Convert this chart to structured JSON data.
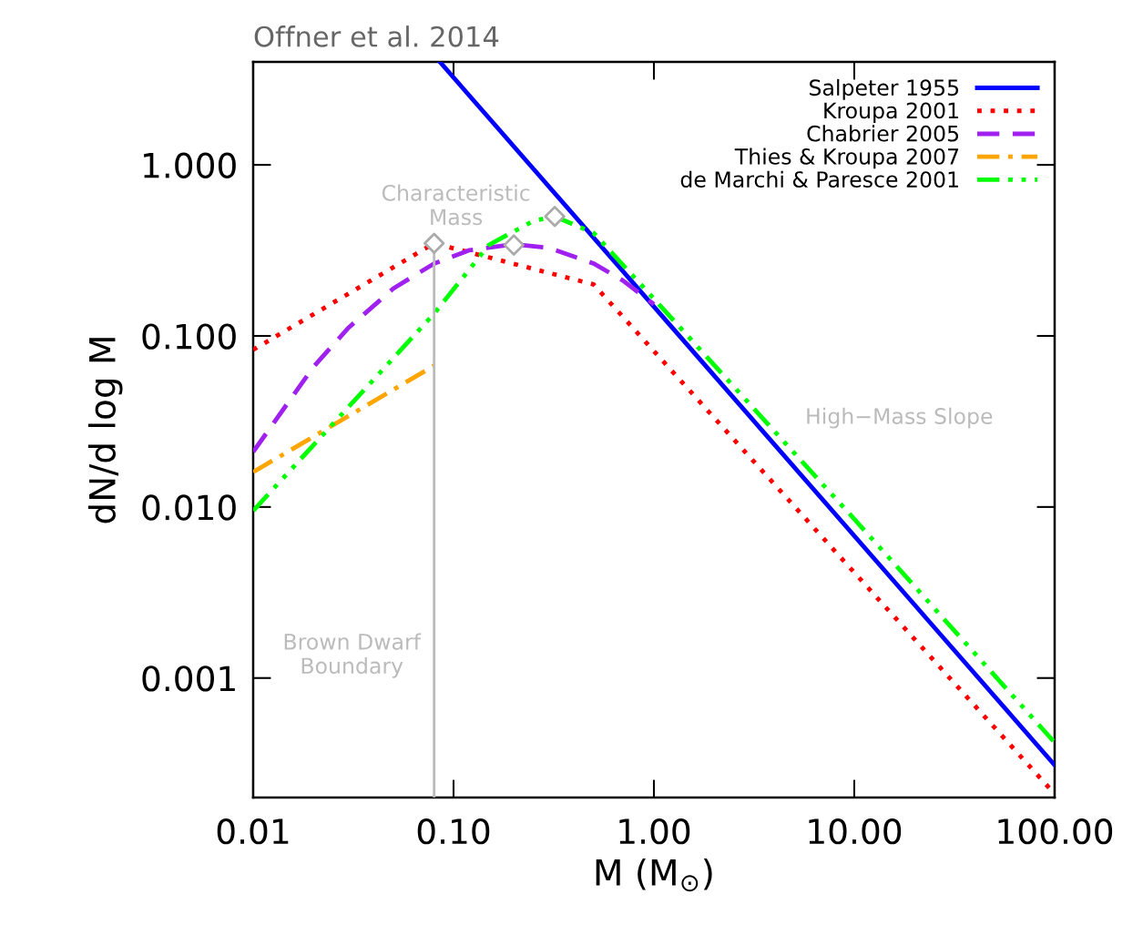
{
  "chart_data": {
    "type": "line",
    "title": "Offner et al. 2014",
    "xlabel": "M (M$_{⊙}$)",
    "ylabel": "dN/d log M",
    "log": "xy",
    "xlim": [
      0.01,
      100
    ],
    "ylim": [
      0.0002,
      4
    ],
    "xticks": [
      {
        "value": 0.01,
        "label": "0.01"
      },
      {
        "value": 0.1,
        "label": "0.10"
      },
      {
        "value": 1,
        "label": "1.00"
      },
      {
        "value": 10,
        "label": "10.00"
      },
      {
        "value": 100,
        "label": "100.00"
      }
    ],
    "yticks": [
      {
        "value": 0.001,
        "label": "0.001"
      },
      {
        "value": 0.01,
        "label": "0.010"
      },
      {
        "value": 0.1,
        "label": "0.100"
      },
      {
        "value": 1,
        "label": "1.000"
      }
    ],
    "grid": false,
    "legend": "top right",
    "series": [
      {
        "name": "Salpeter 1955",
        "color": "#0000ff",
        "line_style": "solid",
        "x": [
          0.0855,
          100
        ],
        "values": [
          4,
          0.00031
        ]
      },
      {
        "name": "Kroupa 2001",
        "color": "#ff0000",
        "line_style": "dotted",
        "x": [
          0.01,
          0.08,
          0.5,
          100
        ],
        "values": [
          0.083,
          0.348,
          0.2,
          0.00021
        ]
      },
      {
        "name": "Chabrier 2005",
        "color": "#a020f0",
        "line_style": "dashed",
        "x": [
          0.01,
          0.02,
          0.03,
          0.05,
          0.08,
          0.12,
          0.2,
          0.3,
          0.5,
          0.7,
          1.0
        ],
        "values": [
          0.021,
          0.066,
          0.112,
          0.189,
          0.265,
          0.317,
          0.344,
          0.327,
          0.265,
          0.211,
          0.153
        ]
      },
      {
        "name": "Thies & Kroupa 2007",
        "color": "#ffa500",
        "line_style": "dashdot",
        "x": [
          0.01,
          0.08
        ],
        "values": [
          0.016,
          0.067
        ]
      },
      {
        "name": "de Marchi & Paresce 2001",
        "color": "#00ff00",
        "line_style": "dashdotdot",
        "x": [
          0.01,
          0.08,
          0.15,
          0.25,
          0.32,
          0.5,
          1.0,
          10,
          100
        ],
        "values": [
          0.0095,
          0.135,
          0.34,
          0.47,
          0.5,
          0.4,
          0.165,
          0.0085,
          0.00042
        ]
      },
      {
        "color": "#bbbbbb",
        "line_style": "solid",
        "x": [
          0.08,
          0.08
        ],
        "values": [
          0.0002,
          0.348
        ]
      },
      {
        "type": "scatter",
        "marker": "diamond",
        "color": "#aaaaaa",
        "x": [
          0.08,
          0.2,
          0.32
        ],
        "values": [
          0.348,
          0.34,
          0.5
        ]
      }
    ],
    "annotations": [
      "Characteristic\nMass",
      "High−Mass Slope",
      "Brown Dwarf\nBoundary"
    ]
  }
}
